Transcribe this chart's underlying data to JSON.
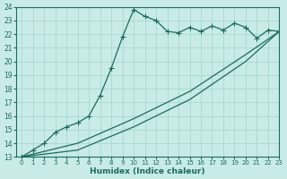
{
  "xlabel": "Humidex (Indice chaleur)",
  "ylabel": "",
  "bg_color": "#c8ebe8",
  "line_color": "#1a6b5a",
  "grid_color": "#a8d8d0",
  "xlim": [
    -0.5,
    23
  ],
  "ylim": [
    13,
    24
  ],
  "xticks": [
    0,
    1,
    2,
    3,
    4,
    5,
    6,
    7,
    8,
    9,
    10,
    11,
    12,
    13,
    14,
    15,
    16,
    17,
    18,
    19,
    20,
    21,
    22,
    23
  ],
  "yticks": [
    13,
    14,
    15,
    16,
    17,
    18,
    19,
    20,
    21,
    22,
    23,
    24
  ],
  "line1_x": [
    0,
    1,
    2,
    3,
    4,
    5,
    6,
    7,
    8,
    9,
    10,
    11,
    12,
    13,
    14,
    15,
    16,
    17,
    18,
    19,
    20,
    21,
    22,
    23
  ],
  "line1_y": [
    13.0,
    13.5,
    14.0,
    14.8,
    15.2,
    15.5,
    16.0,
    17.5,
    19.5,
    21.8,
    23.8,
    23.3,
    23.0,
    22.2,
    22.1,
    22.5,
    22.2,
    22.6,
    22.3,
    22.8,
    22.5,
    21.7,
    22.3,
    22.2
  ],
  "line2_x": [
    0,
    23
  ],
  "line2_y": [
    13.0,
    22.2
  ],
  "line3_x": [
    0,
    23
  ],
  "line3_y": [
    13.0,
    22.2
  ],
  "line2_mid_x": [
    0,
    5,
    10,
    15,
    20,
    23
  ],
  "line2_mid_y": [
    13.0,
    14.0,
    15.8,
    17.8,
    20.5,
    22.2
  ],
  "line3_mid_x": [
    0,
    5,
    10,
    15,
    20,
    23
  ],
  "line3_mid_y": [
    13.0,
    13.5,
    15.2,
    17.2,
    20.0,
    22.2
  ]
}
